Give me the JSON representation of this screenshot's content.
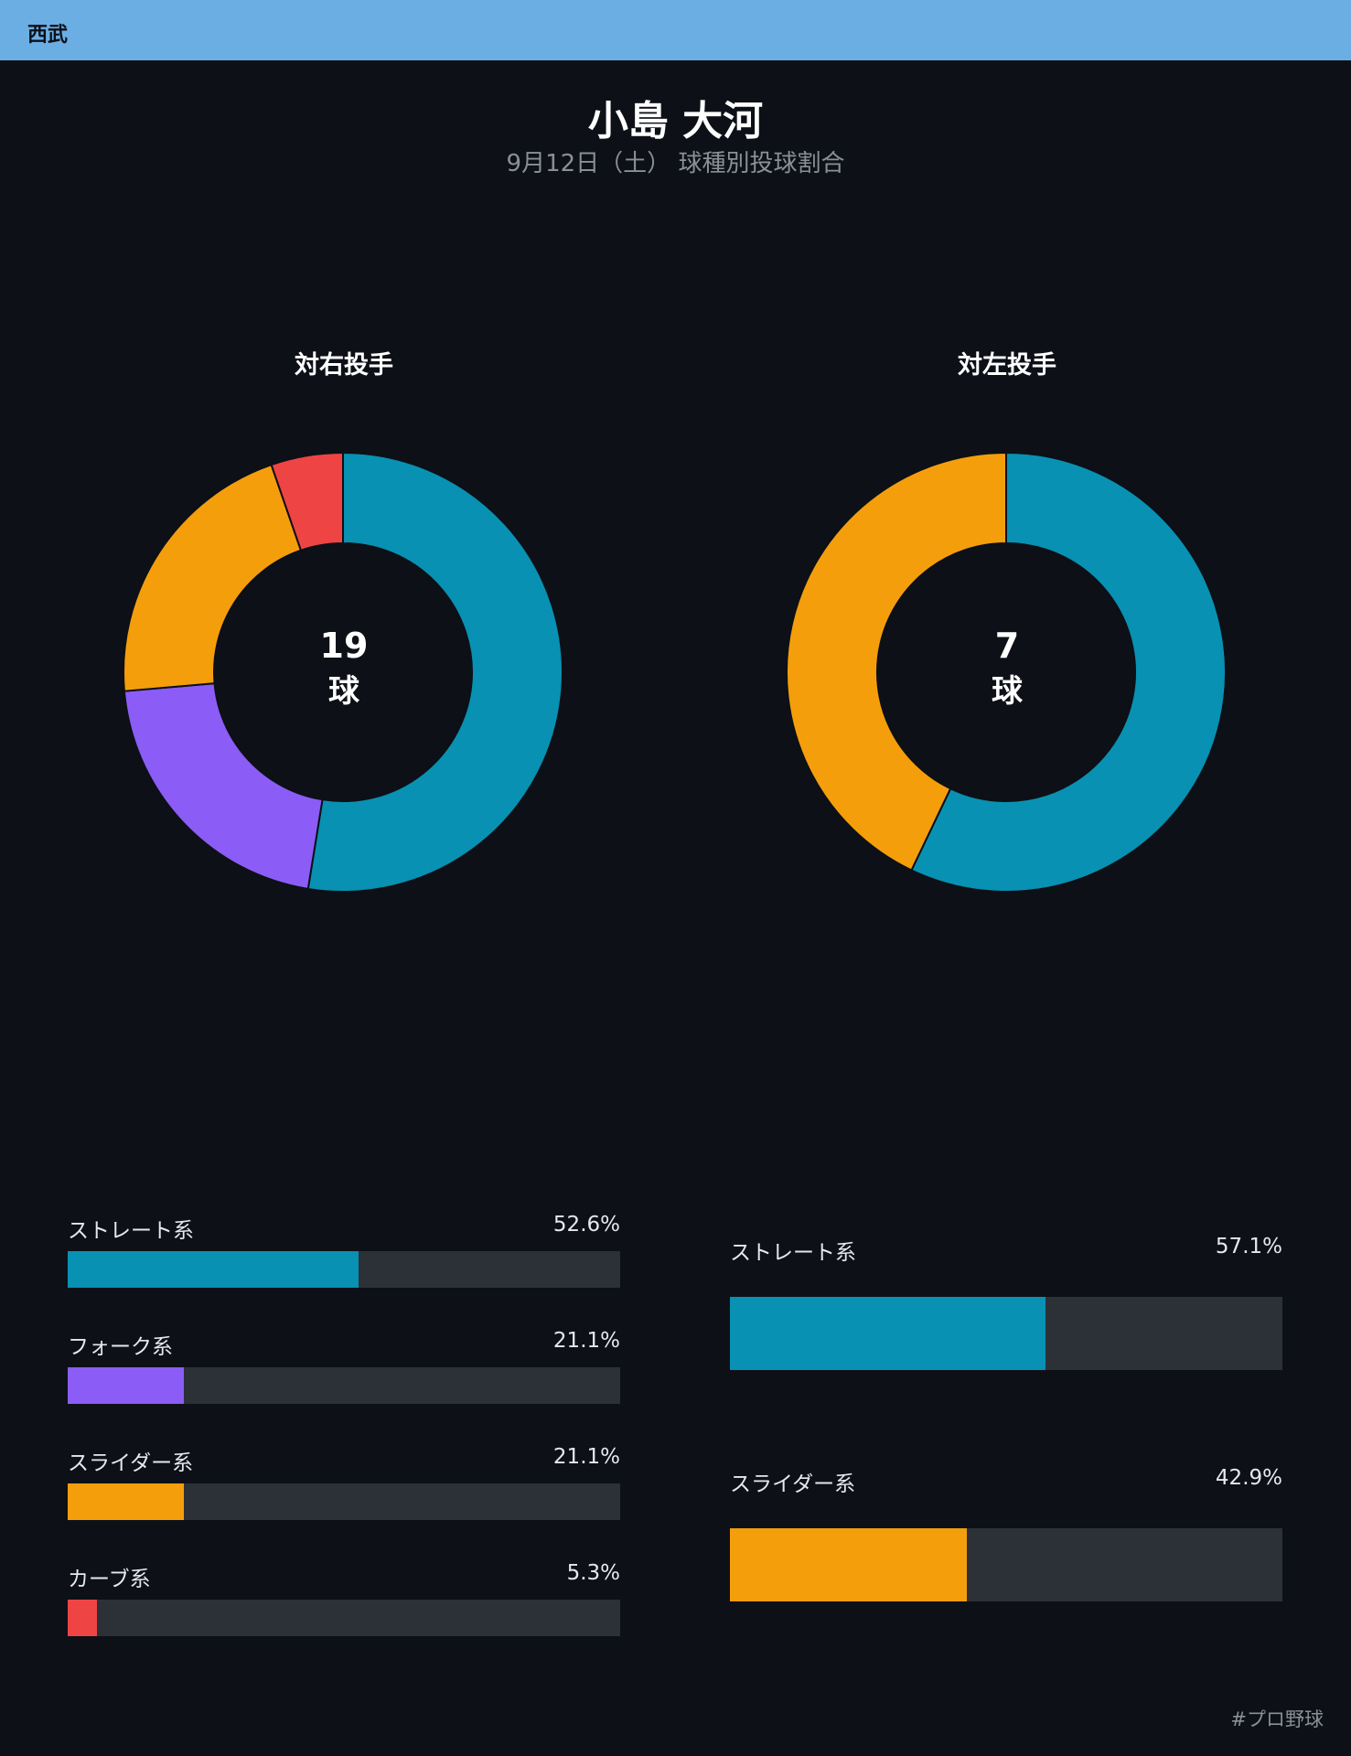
{
  "header": {
    "team": "西武"
  },
  "title": "小島 大河",
  "subtitle": "9月12日（土） 球種別投球割合",
  "footer": "#プロ野球",
  "colors": {
    "straight": "#0891b2",
    "fork": "#8b5cf6",
    "slider": "#f59e0b",
    "curve": "#ef4444",
    "track": "#2c3138"
  },
  "chart_data": [
    {
      "type": "pie",
      "title": "対右投手",
      "total": "19",
      "unit": "球",
      "slices": [
        {
          "label": "ストレート系",
          "value": 52.6,
          "display": "52.6%",
          "color": "#0891b2"
        },
        {
          "label": "フォーク系",
          "value": 21.1,
          "display": "21.1%",
          "color": "#8b5cf6"
        },
        {
          "label": "スライダー系",
          "value": 21.1,
          "display": "21.1%",
          "color": "#f59e0b"
        },
        {
          "label": "カーブ系",
          "value": 5.3,
          "display": "5.3%",
          "color": "#ef4444"
        }
      ]
    },
    {
      "type": "pie",
      "title": "対左投手",
      "total": "7",
      "unit": "球",
      "slices": [
        {
          "label": "ストレート系",
          "value": 57.1,
          "display": "57.1%",
          "color": "#0891b2"
        },
        {
          "label": "スライダー系",
          "value": 42.9,
          "display": "42.9%",
          "color": "#f59e0b"
        }
      ]
    }
  ]
}
